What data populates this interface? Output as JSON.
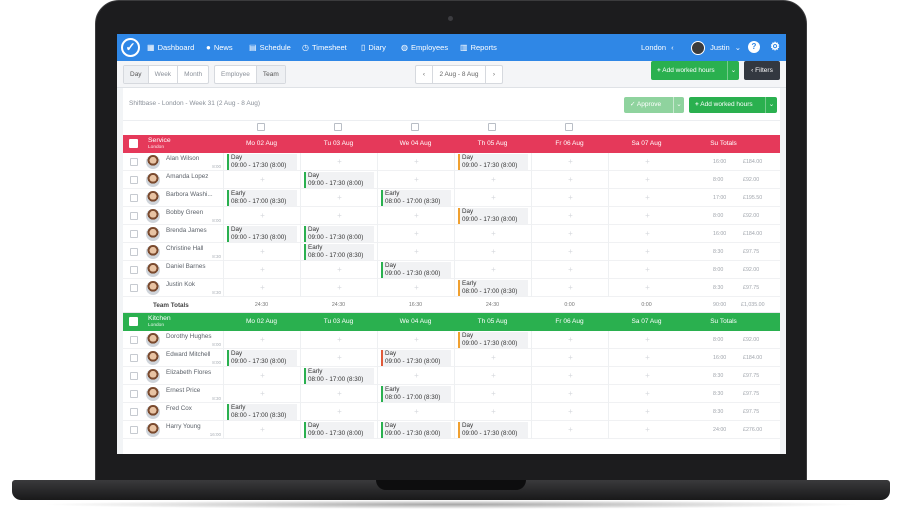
{
  "nav": {
    "items": [
      {
        "label": "Dashboard",
        "icon": "grid-icon"
      },
      {
        "label": "News",
        "icon": "chat-icon"
      },
      {
        "label": "Schedule",
        "icon": "calendar-icon"
      },
      {
        "label": "Timesheet",
        "icon": "clock-icon"
      },
      {
        "label": "Diary",
        "icon": "book-icon"
      },
      {
        "label": "Employees",
        "icon": "people-icon"
      },
      {
        "label": "Reports",
        "icon": "bar-chart-icon"
      }
    ],
    "location": "London",
    "user": "Justin",
    "colors": {
      "bar": "#2f87e6"
    }
  },
  "toolbar": {
    "view_modes": [
      "Day",
      "Week",
      "Month"
    ],
    "group_modes": [
      "Employee",
      "Team"
    ],
    "date_range": "2 Aug - 8 Aug",
    "add_worked_hours": "Add worked hours",
    "filters": "Filters"
  },
  "subbar": {
    "title": "Shiftbase - London - Week 31 (2 Aug - 8 Aug)",
    "approve": "Approve",
    "add_worked_hours": "Add worked hours"
  },
  "days": [
    "Mo 02 Aug",
    "Tu 03 Aug",
    "We 04 Aug",
    "Th 05 Aug",
    "Fr 06 Aug",
    "Sa 07 Aug",
    "Su Totals"
  ],
  "sections": [
    {
      "name": "Service",
      "location": "London",
      "color": "#e5395a",
      "employees": [
        {
          "name": "Alan Wilson",
          "hours": "8:00",
          "shifts": [
            {
              "day": 0,
              "label": "Day",
              "time": "09:00 - 17:30 (8:00)",
              "color": "#2ab04f"
            },
            {
              "day": 3,
              "label": "Day",
              "time": "09:00 - 17:30 (8:00)",
              "color": "#f0a030"
            }
          ],
          "total_hours": "16:00",
          "total_cost": "£184.00"
        },
        {
          "name": "Amanda Lopez",
          "hours": "",
          "shifts": [
            {
              "day": 1,
              "label": "Day",
              "time": "09:00 - 17:30 (8:00)",
              "color": "#2ab04f"
            }
          ],
          "total_hours": "8:00",
          "total_cost": "£92.00"
        },
        {
          "name": "Barbora Washi...",
          "hours": "",
          "shifts": [
            {
              "day": 0,
              "label": "Early",
              "time": "08:00 - 17:00 (8:30)",
              "color": "#2ab04f"
            },
            {
              "day": 2,
              "label": "Early",
              "time": "08:00 - 17:00 (8:30)",
              "color": "#2ab04f"
            }
          ],
          "total_hours": "17:00",
          "total_cost": "£195.50"
        },
        {
          "name": "Bobby Green",
          "hours": "8:00",
          "shifts": [
            {
              "day": 3,
              "label": "Day",
              "time": "09:00 - 17:30 (8:00)",
              "color": "#f0a030"
            }
          ],
          "total_hours": "8:00",
          "total_cost": "£92.00"
        },
        {
          "name": "Brenda James",
          "hours": "",
          "shifts": [
            {
              "day": 0,
              "label": "Day",
              "time": "09:00 - 17:30 (8:00)",
              "color": "#2ab04f"
            },
            {
              "day": 1,
              "label": "Day",
              "time": "09:00 - 17:30 (8:00)",
              "color": "#2ab04f"
            }
          ],
          "total_hours": "16:00",
          "total_cost": "£184.00"
        },
        {
          "name": "Christine Hall",
          "hours": "8:30",
          "shifts": [
            {
              "day": 1,
              "label": "Early",
              "time": "08:00 - 17:00 (8:30)",
              "color": "#2ab04f"
            }
          ],
          "total_hours": "8:30",
          "total_cost": "£97.75"
        },
        {
          "name": "Daniel Barnes",
          "hours": "",
          "shifts": [
            {
              "day": 2,
              "label": "Day",
              "time": "09:00 - 17:30 (8:00)",
              "color": "#2ab04f"
            }
          ],
          "total_hours": "8:00",
          "total_cost": "£92.00"
        },
        {
          "name": "Justin Kok",
          "hours": "8:30",
          "shifts": [
            {
              "day": 3,
              "label": "Early",
              "time": "08:00 - 17:00 (8:30)",
              "color": "#f0a030"
            }
          ],
          "total_hours": "8:30",
          "total_cost": "£97.75"
        }
      ],
      "team_totals": {
        "label": "Team Totals",
        "values": [
          "24:30",
          "24:30",
          "16:30",
          "24:30",
          "0:00",
          "0:00"
        ],
        "hours": "90:00",
        "cost": "£1,035.00"
      }
    },
    {
      "name": "Kitchen",
      "location": "London",
      "color": "#2ab04f",
      "employees": [
        {
          "name": "Dorothy Hughes",
          "hours": "8:00",
          "shifts": [
            {
              "day": 3,
              "label": "Day",
              "time": "09:00 - 17:30 (8:00)",
              "color": "#f0a030"
            }
          ],
          "total_hours": "8:00",
          "total_cost": "£92.00"
        },
        {
          "name": "Edward Mitchell",
          "hours": "8:00",
          "shifts": [
            {
              "day": 0,
              "label": "Day",
              "time": "09:00 - 17:30 (8:00)",
              "color": "#2ab04f"
            },
            {
              "day": 2,
              "label": "Day",
              "time": "09:00 - 17:30 (8:00)",
              "color": "#e05a3a"
            }
          ],
          "total_hours": "16:00",
          "total_cost": "£184.00"
        },
        {
          "name": "Elizabeth Flores",
          "hours": "",
          "shifts": [
            {
              "day": 1,
              "label": "Early",
              "time": "08:00 - 17:00 (8:30)",
              "color": "#2ab04f"
            }
          ],
          "total_hours": "8:30",
          "total_cost": "£97.75"
        },
        {
          "name": "Ernest Price",
          "hours": "8:30",
          "shifts": [
            {
              "day": 2,
              "label": "Early",
              "time": "08:00 - 17:00 (8:30)",
              "color": "#2ab04f"
            }
          ],
          "total_hours": "8:30",
          "total_cost": "£97.75"
        },
        {
          "name": "Fred Cox",
          "hours": "",
          "shifts": [
            {
              "day": 0,
              "label": "Early",
              "time": "08:00 - 17:00 (8:30)",
              "color": "#2ab04f"
            }
          ],
          "total_hours": "8:30",
          "total_cost": "£97.75"
        },
        {
          "name": "Harry Young",
          "hours": "16:00",
          "shifts": [
            {
              "day": 1,
              "label": "Day",
              "time": "09:00 - 17:30 (8:00)",
              "color": "#2ab04f"
            },
            {
              "day": 2,
              "label": "Day",
              "time": "09:00 - 17:30 (8:00)",
              "color": "#2ab04f"
            },
            {
              "day": 3,
              "label": "Day",
              "time": "09:00 - 17:30 (8:00)",
              "color": "#f0a030"
            }
          ],
          "total_hours": "24:00",
          "total_cost": "£276.00"
        }
      ]
    }
  ]
}
